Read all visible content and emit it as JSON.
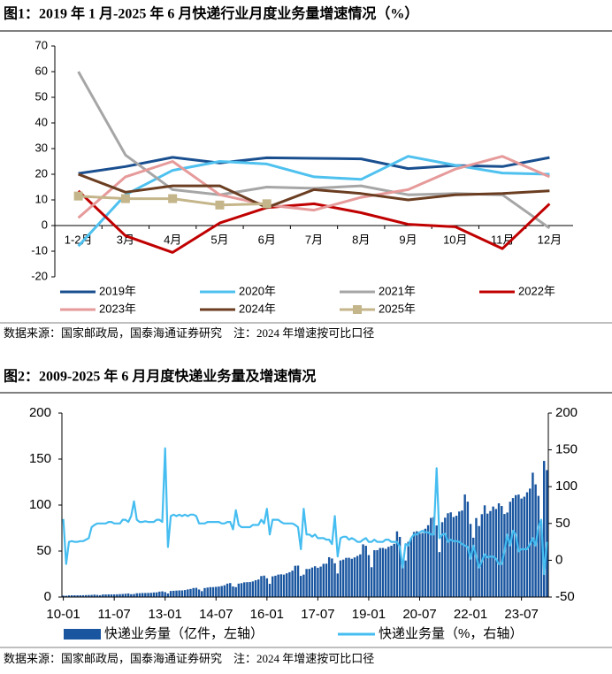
{
  "chart_data": [
    {
      "type": "line",
      "title": "图1：2019 年 1 月-2025 年 6 月快递行业月度业务量增速情况（%）",
      "categories": [
        "1-2月",
        "3月",
        "4月",
        "5月",
        "6月",
        "7月",
        "8月",
        "9月",
        "10月",
        "11月",
        "12月"
      ],
      "ylim": [
        -20,
        70
      ],
      "yticks": [
        -20,
        -10,
        0,
        10,
        20,
        30,
        40,
        50,
        60,
        70
      ],
      "grid": false,
      "series": [
        {
          "name": "2019年",
          "color": "#1a4f8f",
          "values": [
            20.3,
            23,
            26.6,
            24.4,
            26.4,
            26.2,
            26,
            22.2,
            23.4,
            23,
            26.5
          ]
        },
        {
          "name": "2020年",
          "color": "#4fc1ef",
          "values": [
            -8,
            12,
            21.5,
            25,
            24,
            19,
            18,
            27,
            23.5,
            20.5,
            20
          ]
        },
        {
          "name": "2021年",
          "color": "#a6a6a6",
          "values": [
            60,
            27.5,
            14,
            12,
            15,
            14.5,
            15.5,
            12,
            12.5,
            12,
            -1
          ]
        },
        {
          "name": "2022年",
          "color": "#c00000",
          "values": [
            13.5,
            -4,
            -10.5,
            1,
            7,
            8.5,
            5,
            0.5,
            -0.5,
            -9,
            8.5
          ]
        },
        {
          "name": "2023年",
          "color": "#e69a9a",
          "values": [
            3,
            19,
            25,
            12,
            8,
            6,
            11,
            14,
            22,
            27,
            19
          ]
        },
        {
          "name": "2024年",
          "color": "#6b3e22",
          "values": [
            20,
            13,
            15.5,
            15.5,
            7,
            14,
            12.5,
            10,
            12,
            12.5,
            13.5
          ]
        },
        {
          "name": "2025年",
          "color": "#c4b58a",
          "marker": "square",
          "values": [
            11.5,
            10.5,
            10.5,
            8,
            8.5,
            null,
            null,
            null,
            null,
            null,
            null
          ]
        }
      ],
      "note": "数据来源：国家邮政局，国泰海通证券研究    注：2024 年增速按可比口径"
    },
    {
      "type": "combo",
      "title": "图2：2009-2025 年 6 月月度快递业务量及增速情况",
      "categories": [
        "10-01",
        null,
        null,
        null,
        null,
        null,
        null,
        null,
        null,
        null,
        null,
        null,
        null,
        null,
        null,
        null,
        null,
        null,
        "11-07",
        null,
        null,
        null,
        null,
        null,
        null,
        null,
        null,
        null,
        null,
        null,
        null,
        null,
        null,
        null,
        null,
        null,
        "13-01",
        null,
        null,
        null,
        null,
        null,
        null,
        null,
        null,
        null,
        null,
        null,
        null,
        null,
        null,
        null,
        null,
        null,
        "14-07",
        null,
        null,
        null,
        null,
        null,
        null,
        null,
        null,
        null,
        null,
        null,
        null,
        null,
        null,
        null,
        null,
        null,
        "16-01",
        null,
        null,
        null,
        null,
        null,
        null,
        null,
        null,
        null,
        null,
        null,
        null,
        null,
        null,
        null,
        null,
        null,
        "17-07",
        null,
        null,
        null,
        null,
        null,
        null,
        null,
        null,
        null,
        null,
        null,
        null,
        null,
        null,
        null,
        null,
        null,
        "19-01",
        null,
        null,
        null,
        null,
        null,
        null,
        null,
        null,
        null,
        null,
        null,
        null,
        null,
        null,
        null,
        null,
        null,
        "20-07",
        null,
        null,
        null,
        null,
        null,
        null,
        null,
        null,
        null,
        null,
        null,
        null,
        null,
        null,
        null,
        null,
        null,
        "22-01",
        null,
        null,
        null,
        null,
        null,
        null,
        null,
        null,
        null,
        null,
        null,
        null,
        null,
        null,
        null,
        null,
        null,
        "23-07",
        null,
        null,
        null,
        null,
        null,
        null,
        null,
        null,
        null
      ],
      "ylim": [
        0,
        200
      ],
      "yticks": [
        0,
        50,
        100,
        150,
        200
      ],
      "y2lim": [
        -50,
        200
      ],
      "y2ticks": [
        -50,
        0,
        50,
        100,
        150,
        200
      ],
      "series": [
        {
          "name": "快递业务量（亿件，左轴）",
          "type": "bar",
          "color": "#1a56a0",
          "values": [
            1.5,
            1.4,
            1.8,
            1.9,
            1.9,
            1.9,
            1.9,
            2.0,
            2.1,
            2.2,
            2.3,
            2.6,
            2.3,
            2.0,
            2.8,
            2.8,
            2.9,
            2.9,
            2.9,
            3.0,
            3.2,
            3.3,
            3.6,
            3.9,
            3.1,
            3.3,
            4.1,
            4.2,
            4.4,
            4.4,
            4.5,
            4.6,
            5.0,
            5.1,
            5.9,
            6.2,
            5.4,
            3.9,
            6.6,
            6.8,
            7.0,
            7.2,
            7.2,
            7.6,
            8.3,
            8.8,
            9.8,
            10.0,
            8.2,
            6.4,
            9.8,
            10.3,
            10.8,
            10.8,
            11.1,
            11.4,
            12.0,
            12.8,
            14.6,
            15.2,
            11.5,
            10.8,
            14.6,
            15.1,
            16.0,
            16.2,
            16.3,
            17.0,
            18.3,
            19.1,
            22.8,
            23.3,
            20.4,
            14.4,
            22.5,
            23.2,
            24.4,
            24.7,
            24.4,
            25.8,
            27.0,
            28.7,
            34.0,
            34.2,
            23.0,
            24.4,
            30.5,
            30.6,
            32.1,
            33.5,
            31.8,
            33.1,
            36.1,
            36.3,
            43.3,
            41.9,
            36.7,
            25.6,
            39.8,
            40.7,
            42.6,
            42.7,
            41.6,
            43.1,
            44.7,
            46.4,
            57.3,
            55.7,
            45.6,
            32.4,
            50.9,
            51.0,
            53.3,
            53.4,
            52.4,
            54.6,
            55.8,
            57.9,
            71.4,
            65.4,
            39.7,
            39.7,
            60.0,
            63.6,
            70.7,
            71.5,
            69.0,
            69.6,
            74.3,
            78.1,
            86.1,
            86.9,
            77.8,
            48.9,
            81.4,
            86.3,
            91.1,
            92.1,
            87.0,
            88.4,
            93.0,
            94.1,
            111.5,
            103.7,
            79.5,
            64.5,
            85.9,
            77.2,
            90.1,
            99.7,
            90.7,
            93.5,
            98.4,
            95.7,
            101.9,
            99.0,
            90.3,
            91.9,
            103.6,
            107.6,
            110.8,
            111.4,
            107.1,
            109.1,
            113.9,
            117.9,
            135.2,
            122.5,
            110,
            80,
            148,
            138
          ]
        },
        {
          "name": "快递业务量（%，右轴）",
          "type": "line",
          "axis": "y2",
          "color": "#45bdf0",
          "values": [
            56,
            -5,
            25,
            26,
            25,
            25,
            26,
            26,
            28,
            30,
            45,
            48,
            50,
            50,
            50,
            50,
            52,
            52,
            50,
            50,
            50,
            55,
            55,
            52,
            60,
            80,
            55,
            52,
            52,
            53,
            52,
            52,
            52,
            55,
            55,
            52,
            152,
            18,
            60,
            62,
            60,
            62,
            60,
            62,
            60,
            62,
            62,
            60,
            50,
            50,
            50,
            52,
            52,
            52,
            52,
            52,
            50,
            50,
            52,
            52,
            42,
            68,
            48,
            45,
            45,
            45,
            45,
            48,
            48,
            48,
            55,
            50,
            70,
            35,
            55,
            55,
            55,
            52,
            50,
            50,
            50,
            50,
            48,
            45,
            15,
            70,
            35,
            35,
            32,
            35,
            30,
            30,
            30,
            28,
            28,
            22,
            60,
            5,
            30,
            32,
            32,
            28,
            30,
            28,
            25,
            25,
            28,
            30,
            25,
            25,
            28,
            25,
            25,
            25,
            28,
            28,
            25,
            25,
            25,
            18,
            -10,
            22,
            20,
            30,
            35,
            35,
            38,
            40,
            38,
            38,
            35,
            35,
            125,
            30,
            35,
            36,
            25,
            28,
            26,
            26,
            25,
            22,
            20,
            18,
            2,
            20,
            5,
            -10,
            -1,
            8,
            4,
            5,
            5,
            2,
            -5,
            -5,
            12,
            35,
            20,
            40,
            35,
            12,
            15,
            15,
            15,
            22,
            30,
            20,
            45,
            55,
            -19,
            25
          ]
        }
      ],
      "note": "数据来源：国家邮政局，国泰海通证券研究    注：2024 年增速按可比口径"
    }
  ]
}
